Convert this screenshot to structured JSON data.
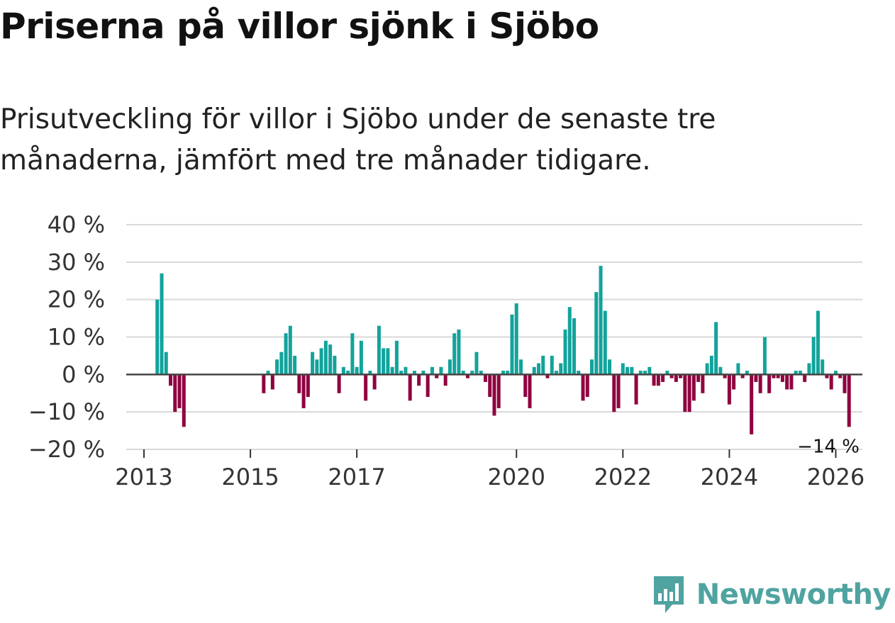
{
  "chart_data": {
    "type": "bar",
    "title": "Priserna på villor sjönk i Sjöbo",
    "subtitle": "Prisutveckling för villor i Sjöbo under de senaste tre månaderna, jämfört med tre månader tidigare.",
    "ylim": [
      -20,
      40
    ],
    "y_ticks": [
      40,
      30,
      20,
      10,
      0,
      -10,
      -20
    ],
    "y_tick_labels": [
      "40 %",
      "30 %",
      "20 %",
      "10 %",
      "0 %",
      "−10 %",
      "−20 %"
    ],
    "x_ticks": [
      2013,
      2015,
      2017,
      2020,
      2022,
      2024,
      2026
    ],
    "x_tick_labels": [
      "2013",
      "2015",
      "2017",
      "2020",
      "2022",
      "2024",
      "2026"
    ],
    "x_range": [
      2012.667,
      2026.5
    ],
    "start_year": 2013.25,
    "step_years": 0.08333,
    "values": [
      20,
      27,
      6,
      -3,
      -10,
      -9,
      -14,
      0,
      0,
      0,
      0,
      0,
      0,
      0,
      0,
      0,
      0,
      0,
      0,
      0,
      0,
      0,
      0,
      0,
      -5,
      1,
      -4,
      4,
      6,
      11,
      13,
      5,
      -5,
      -9,
      -6,
      6,
      4,
      7,
      9,
      8,
      5,
      -5,
      2,
      1,
      11,
      2,
      9,
      -7,
      1,
      -4,
      13,
      7,
      7,
      2,
      9,
      1,
      2,
      -7,
      1,
      -3,
      1,
      -6,
      2,
      -1,
      2,
      -3,
      4,
      11,
      12,
      1,
      -1,
      1,
      6,
      1,
      -2,
      -6,
      -11,
      -9,
      1,
      1,
      16,
      19,
      4,
      -6,
      -9,
      2,
      3,
      5,
      -1,
      5,
      1,
      3,
      12,
      18,
      15,
      1,
      -7,
      -6,
      4,
      22,
      29,
      17,
      4,
      -10,
      -9,
      3,
      2,
      2,
      -8,
      1,
      1,
      2,
      -3,
      -3,
      -2,
      1,
      -1,
      -2,
      -1,
      -10,
      -10,
      -7,
      -2,
      -5,
      3,
      5,
      14,
      2,
      -1,
      -8,
      -4,
      3,
      -1,
      1,
      -16,
      -2,
      -5,
      10,
      -5,
      -1,
      -1,
      -2,
      -4,
      -4,
      1,
      1,
      -2,
      3,
      10,
      17,
      4,
      -1,
      -4,
      1,
      -1,
      -5,
      -14
    ],
    "positive_color": "#12a39c",
    "negative_color": "#8f0440",
    "annotation": "−14 %"
  },
  "brand": {
    "name": "Newsworthy",
    "color": "#4fa3a0"
  }
}
